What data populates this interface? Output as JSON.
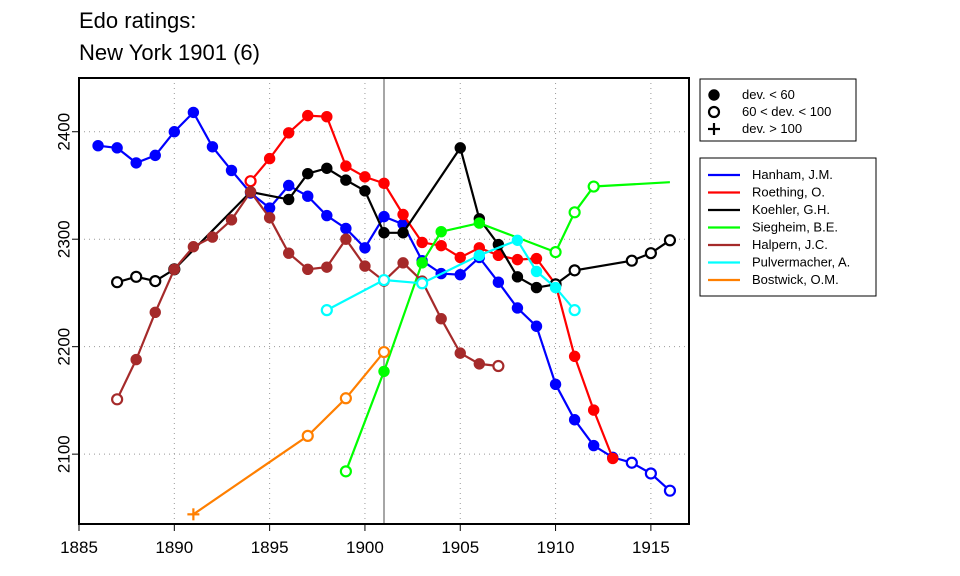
{
  "chart_data": {
    "type": "line",
    "title": [
      "Edo ratings:",
      "New York 1901 (6)"
    ],
    "xlabel": "",
    "ylabel": "",
    "xlim": [
      1885,
      1917
    ],
    "ylim": [
      2035,
      2450
    ],
    "x_ticks": [
      1885,
      1890,
      1895,
      1900,
      1905,
      1910,
      1915
    ],
    "y_ticks": [
      2100,
      2200,
      2300,
      2400
    ],
    "grid": "dotted",
    "reference_line_x": 1901,
    "marker_legend": [
      {
        "marker": "filled",
        "label": "dev. < 60"
      },
      {
        "marker": "open",
        "label": "60 < dev. < 100"
      },
      {
        "marker": "plus",
        "label": "dev. > 100"
      }
    ],
    "marker_legend_position": "top-right",
    "series_legend_position": "right",
    "series": [
      {
        "name": "Hanham, J.M.",
        "color": "#0000ff",
        "points": [
          [
            1886,
            2387,
            "filled"
          ],
          [
            1887,
            2385,
            "filled"
          ],
          [
            1888,
            2371,
            "filled"
          ],
          [
            1889,
            2378,
            "filled"
          ],
          [
            1890,
            2400,
            "filled"
          ],
          [
            1891,
            2418,
            "filled"
          ],
          [
            1892,
            2386,
            "filled"
          ],
          [
            1893,
            2364,
            "filled"
          ],
          [
            1894,
            2343,
            "filled"
          ],
          [
            1895,
            2329,
            "filled"
          ],
          [
            1896,
            2350,
            "filled"
          ],
          [
            1897,
            2340,
            "filled"
          ],
          [
            1898,
            2322,
            "filled"
          ],
          [
            1899,
            2310,
            "filled"
          ],
          [
            1900,
            2292,
            "filled"
          ],
          [
            1901,
            2321,
            "filled"
          ],
          [
            1902,
            2314,
            "filled"
          ],
          [
            1903,
            2280,
            "filled"
          ],
          [
            1904,
            2268,
            "filled"
          ],
          [
            1905,
            2267,
            "filled"
          ],
          [
            1906,
            2283,
            "filled"
          ],
          [
            1907,
            2260,
            "filled"
          ],
          [
            1908,
            2236,
            "filled"
          ],
          [
            1909,
            2219,
            "filled"
          ],
          [
            1910,
            2165,
            "filled"
          ],
          [
            1911,
            2132,
            "filled"
          ],
          [
            1912,
            2108,
            "filled"
          ],
          [
            1913,
            2097,
            "filled"
          ],
          [
            1914,
            2092,
            "open"
          ],
          [
            1915,
            2082,
            "open"
          ],
          [
            1916,
            2066,
            "open"
          ]
        ]
      },
      {
        "name": "Roething, O.",
        "color": "#ff0000",
        "points": [
          [
            1894,
            2354,
            "open"
          ],
          [
            1895,
            2375,
            "filled"
          ],
          [
            1896,
            2399,
            "filled"
          ],
          [
            1897,
            2415,
            "filled"
          ],
          [
            1898,
            2414,
            "filled"
          ],
          [
            1899,
            2368,
            "filled"
          ],
          [
            1900,
            2358,
            "filled"
          ],
          [
            1901,
            2352,
            "filled"
          ],
          [
            1902,
            2323,
            "filled"
          ],
          [
            1903,
            2297,
            "filled"
          ],
          [
            1904,
            2294,
            "filled"
          ],
          [
            1905,
            2283,
            "filled"
          ],
          [
            1906,
            2292,
            "filled"
          ],
          [
            1907,
            2285,
            "filled"
          ],
          [
            1908,
            2281,
            "filled"
          ],
          [
            1909,
            2282,
            "filled"
          ],
          [
            1910,
            2258,
            "filled"
          ],
          [
            1911,
            2191,
            "filled"
          ],
          [
            1912,
            2141,
            "filled"
          ],
          [
            1913,
            2096,
            "filled"
          ]
        ]
      },
      {
        "name": "Koehler, G.H.",
        "color": "#000000",
        "points": [
          [
            1887,
            2260,
            "open"
          ],
          [
            1888,
            2265,
            "open"
          ],
          [
            1889,
            2261,
            "open"
          ],
          [
            1890,
            2272,
            "open"
          ],
          [
            1894,
            2344,
            "filled"
          ],
          [
            1896,
            2337,
            "filled"
          ],
          [
            1897,
            2361,
            "filled"
          ],
          [
            1898,
            2366,
            "filled"
          ],
          [
            1899,
            2355,
            "filled"
          ],
          [
            1900,
            2345,
            "filled"
          ],
          [
            1901,
            2306,
            "filled"
          ],
          [
            1902,
            2306,
            "filled"
          ],
          [
            1905,
            2385,
            "filled"
          ],
          [
            1906,
            2319,
            "filled"
          ],
          [
            1907,
            2295,
            "filled"
          ],
          [
            1908,
            2265,
            "filled"
          ],
          [
            1909,
            2255,
            "filled"
          ],
          [
            1910,
            2258,
            "open"
          ],
          [
            1911,
            2271,
            "open"
          ],
          [
            1914,
            2280,
            "open"
          ],
          [
            1915,
            2287,
            "open"
          ],
          [
            1916,
            2299,
            "open"
          ]
        ]
      },
      {
        "name": "Siegheim, B.E.",
        "color": "#00ff00",
        "points": [
          [
            1899,
            2084,
            "open"
          ],
          [
            1901,
            2177,
            "filled"
          ],
          [
            1903,
            2278,
            "filled"
          ],
          [
            1904,
            2307,
            "filled"
          ],
          [
            1906,
            2315,
            "filled"
          ],
          [
            1910,
            2288,
            "open"
          ],
          [
            1911,
            2325,
            "open"
          ],
          [
            1912,
            2349,
            "open"
          ],
          [
            1916,
            2353,
            "none"
          ]
        ]
      },
      {
        "name": "Halpern, J.C.",
        "color": "#a52a2a",
        "points": [
          [
            1887,
            2151,
            "open"
          ],
          [
            1888,
            2188,
            "filled"
          ],
          [
            1889,
            2232,
            "filled"
          ],
          [
            1890,
            2272,
            "filled"
          ],
          [
            1891,
            2293,
            "filled"
          ],
          [
            1892,
            2302,
            "filled"
          ],
          [
            1893,
            2318,
            "filled"
          ],
          [
            1894,
            2344,
            "filled"
          ],
          [
            1895,
            2320,
            "filled"
          ],
          [
            1896,
            2287,
            "filled"
          ],
          [
            1897,
            2272,
            "filled"
          ],
          [
            1898,
            2274,
            "filled"
          ],
          [
            1899,
            2300,
            "filled"
          ],
          [
            1900,
            2275,
            "filled"
          ],
          [
            1901,
            2261,
            "filled"
          ],
          [
            1902,
            2278,
            "filled"
          ],
          [
            1903,
            2261,
            "filled"
          ],
          [
            1904,
            2226,
            "filled"
          ],
          [
            1905,
            2194,
            "filled"
          ],
          [
            1906,
            2184,
            "filled"
          ],
          [
            1907,
            2182,
            "open"
          ]
        ]
      },
      {
        "name": "Pulvermacher, A.",
        "color": "#00ffff",
        "points": [
          [
            1898,
            2234,
            "open"
          ],
          [
            1901,
            2262,
            "open"
          ],
          [
            1903,
            2259,
            "open"
          ],
          [
            1906,
            2285,
            "filled"
          ],
          [
            1908,
            2299,
            "filled"
          ],
          [
            1909,
            2270,
            "filled"
          ],
          [
            1910,
            2255,
            "filled"
          ],
          [
            1911,
            2234,
            "open"
          ]
        ]
      },
      {
        "name": "Bostwick, O.M.",
        "color": "#ff7f00",
        "points": [
          [
            1891,
            2044,
            "plus"
          ],
          [
            1897,
            2117,
            "open"
          ],
          [
            1899,
            2152,
            "open"
          ],
          [
            1901,
            2195,
            "open"
          ]
        ]
      }
    ]
  }
}
